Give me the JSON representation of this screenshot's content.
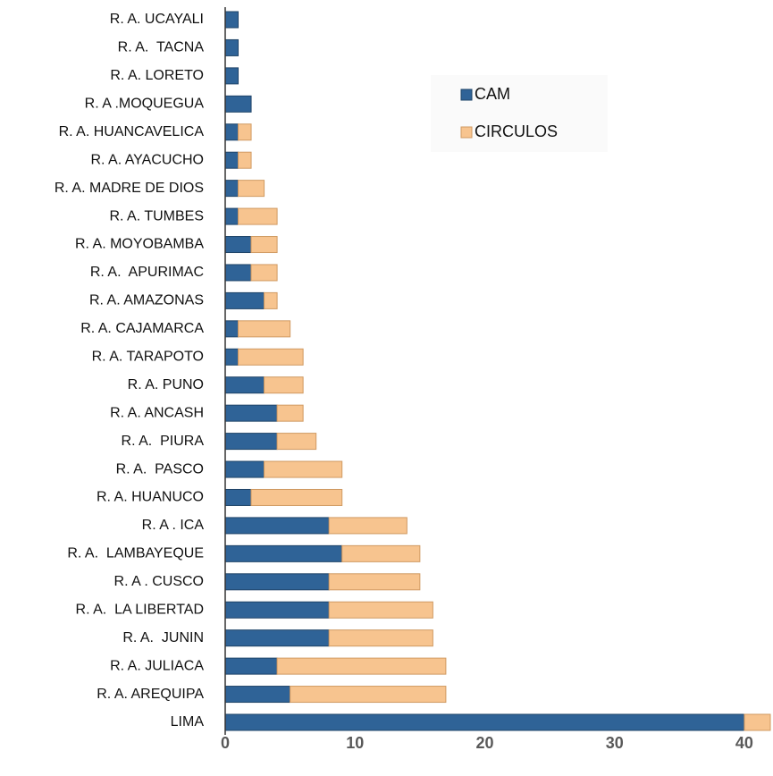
{
  "chart_data": {
    "type": "stacked_barh",
    "categories": [
      "R. A. UCAYALI",
      "R. A.  TACNA",
      "R. A. LORETO",
      "R. A .MOQUEGUA",
      "R. A. HUANCAVELICA",
      "R. A. AYACUCHO",
      "R. A. MADRE DE DIOS",
      "R. A. TUMBES",
      "R. A. MOYOBAMBA",
      "R. A.  APURIMAC",
      "R. A. AMAZONAS",
      "R. A. CAJAMARCA",
      "R. A. TARAPOTO",
      "R. A. PUNO",
      "R. A. ANCASH",
      "R. A.  PIURA",
      "R. A.  PASCO",
      "R. A. HUANUCO",
      "R. A . ICA",
      "R. A.  LAMBAYEQUE",
      "R. A . CUSCO",
      "R. A.  LA LIBERTAD",
      "R. A.  JUNIN",
      "R. A. JULIACA",
      "R. A. AREQUIPA",
      "LIMA"
    ],
    "series": [
      {
        "name": "CAM",
        "color": "#2f6397",
        "values": [
          1,
          1,
          1,
          2,
          1,
          1,
          1,
          1,
          2,
          2,
          3,
          1,
          1,
          3,
          4,
          4,
          3,
          2,
          8,
          9,
          8,
          8,
          8,
          4,
          5,
          40
        ]
      },
      {
        "name": "CIRCULOS",
        "color": "#f7c48f",
        "values": [
          0,
          0,
          0,
          0,
          1,
          1,
          2,
          3,
          2,
          2,
          1,
          4,
          5,
          3,
          2,
          3,
          6,
          7,
          6,
          6,
          7,
          8,
          8,
          13,
          12,
          2
        ]
      }
    ],
    "xlim": [
      0,
      42
    ],
    "xticks": [
      0,
      10,
      20,
      30,
      40
    ],
    "grid": false,
    "legend": "upper right"
  }
}
